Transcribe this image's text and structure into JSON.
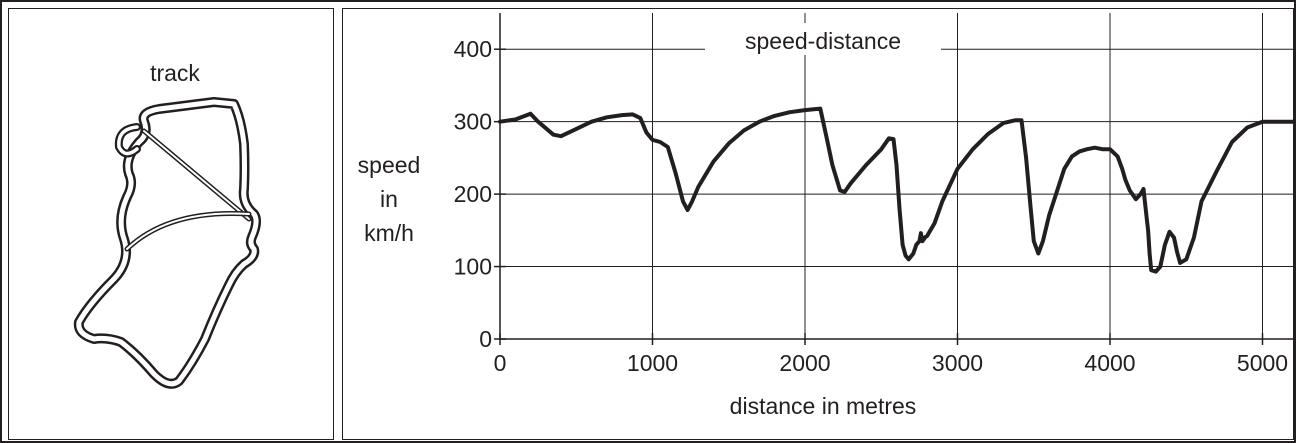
{
  "track_panel": {
    "title": "track"
  },
  "chart_data": {
    "type": "line",
    "title": "speed-distance",
    "xlabel": "distance in metres",
    "ylabel_lines": [
      "speed",
      "in",
      "km/h"
    ],
    "xlim": [
      0,
      5200
    ],
    "ylim": [
      0,
      450
    ],
    "x_ticks": [
      0,
      1000,
      2000,
      3000,
      4000,
      5000
    ],
    "y_ticks": [
      0,
      100,
      200,
      300,
      400
    ],
    "grid": true,
    "series": [
      {
        "color": "#231f20",
        "x": [
          0,
          100,
          200,
          250,
          300,
          350,
          400,
          500,
          600,
          700,
          800,
          870,
          920,
          960,
          1000,
          1050,
          1100,
          1150,
          1200,
          1230,
          1260,
          1300,
          1400,
          1500,
          1600,
          1700,
          1800,
          1900,
          2000,
          2050,
          2100,
          2140,
          2180,
          2230,
          2260,
          2300,
          2400,
          2500,
          2550,
          2580,
          2600,
          2620,
          2640,
          2660,
          2680,
          2710,
          2730,
          2750,
          2760,
          2770,
          2790,
          2800,
          2850,
          2900,
          3000,
          3100,
          3200,
          3300,
          3380,
          3420,
          3450,
          3480,
          3500,
          3530,
          3560,
          3600,
          3700,
          3750,
          3800,
          3850,
          3900,
          3950,
          4000,
          4050,
          4080,
          4100,
          4130,
          4170,
          4200,
          4220,
          4240,
          4250,
          4260,
          4270,
          4300,
          4330,
          4360,
          4390,
          4420,
          4440,
          4460,
          4500,
          4550,
          4600,
          4700,
          4800,
          4900,
          5000,
          5100,
          5200
        ],
        "y": [
          300,
          303,
          311,
          300,
          291,
          282,
          280,
          290,
          300,
          306,
          309,
          310,
          305,
          285,
          275,
          272,
          265,
          230,
          190,
          178,
          190,
          210,
          245,
          270,
          288,
          300,
          308,
          313,
          316,
          317,
          318,
          280,
          240,
          205,
          203,
          215,
          240,
          262,
          277,
          276,
          240,
          180,
          130,
          115,
          110,
          118,
          130,
          135,
          146,
          135,
          141,
          142,
          160,
          190,
          235,
          262,
          283,
          298,
          302,
          302,
          250,
          180,
          135,
          118,
          135,
          170,
          235,
          252,
          259,
          262,
          264,
          262,
          262,
          252,
          235,
          220,
          205,
          193,
          200,
          207,
          168,
          150,
          118,
          95,
          93,
          100,
          130,
          148,
          140,
          120,
          105,
          110,
          140,
          190,
          232,
          272,
          292,
          300,
          300,
          300
        ]
      }
    ]
  }
}
